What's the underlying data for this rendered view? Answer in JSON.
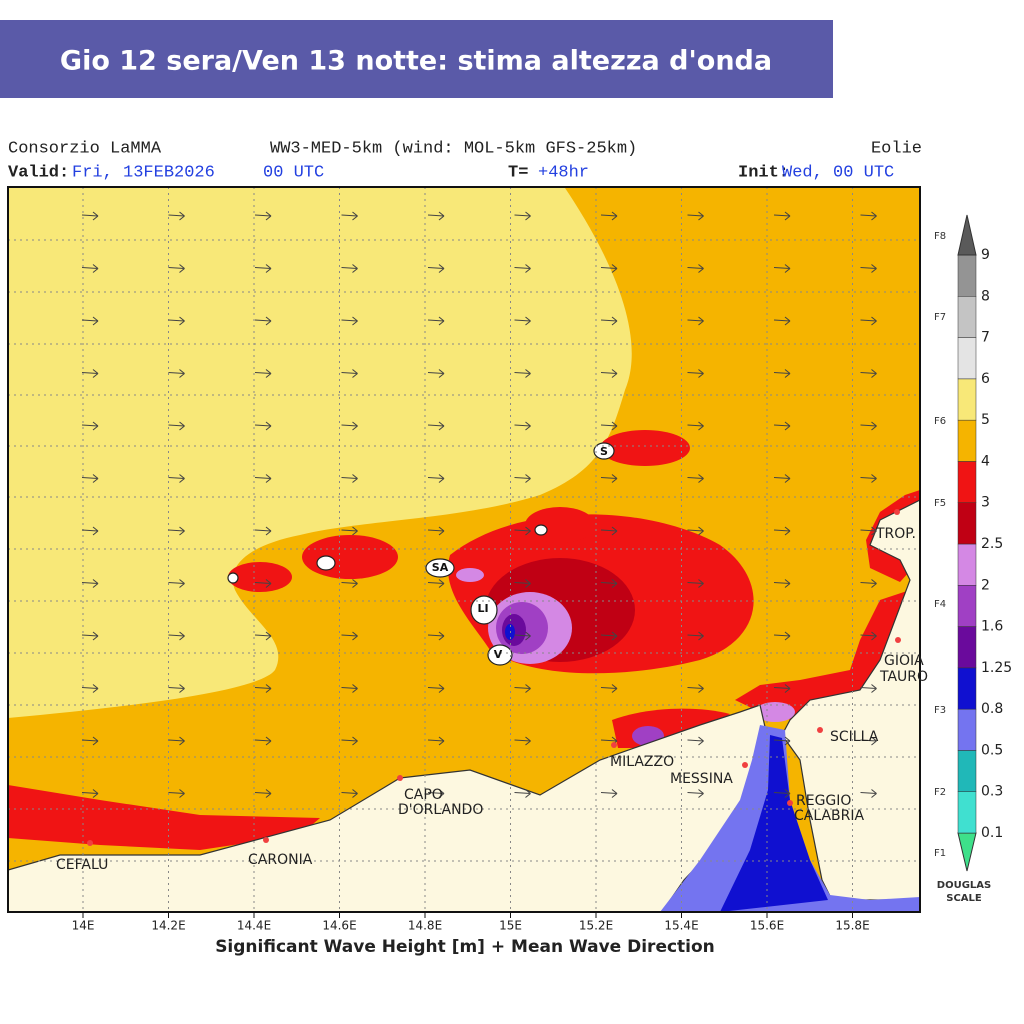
{
  "banner": {
    "title": "Gio 12 sera/Ven 13 notte: stima altezza d'onda"
  },
  "header": {
    "source": "Consorzio LaMMA",
    "model": "WW3-MED-5km (wind: MOL-5km GFS-25km)",
    "region": "Eolie",
    "valid_label": "Valid:",
    "valid_date": "Fri, 13FEB2026",
    "valid_time": "00 UTC",
    "t_label": "T=",
    "t_value": "+48hr",
    "init_label": "Init:",
    "init_value": "Wed, 00 UTC"
  },
  "map": {
    "places": [
      "CEFALU",
      "CARONIA",
      "CAPO",
      "D'ORLANDO",
      "MILAZZO",
      "MESSINA",
      "REGGIO",
      "CALABRIA",
      "SCILLA",
      "GIOIA",
      "TAURO",
      "TROP."
    ],
    "islands": [
      "S",
      "SA",
      "LI",
      "V"
    ],
    "xticks": [
      "14E",
      "14.2E",
      "14.4E",
      "14.6E",
      "14.8E",
      "15E",
      "15.2E",
      "15.4E",
      "15.6E",
      "15.8E"
    ],
    "xlabel": "Significant Wave Height [m] + Mean Wave Direction"
  },
  "legend": {
    "levels": [
      "0.1",
      "0.3",
      "0.5",
      "0.8",
      "1.25",
      "1.6",
      "2",
      "2.5",
      "3",
      "4",
      "5",
      "6",
      "7",
      "8",
      "9"
    ],
    "colors": [
      "#3ee08a",
      "#40e0d0",
      "#20b8b8",
      "#7474f0",
      "#1010d0",
      "#6a0a9c",
      "#a040c4",
      "#d488e4",
      "#c00014",
      "#f01414",
      "#f5b400",
      "#f8e878",
      "#e4e4e4",
      "#c4c4c4",
      "#949494",
      "#5a5a5a"
    ],
    "beaufort": [
      "F1",
      "F2",
      "F3",
      "F4",
      "F5",
      "F6",
      "F7",
      "F8"
    ],
    "title": [
      "DOUGLAS",
      "SCALE"
    ]
  }
}
